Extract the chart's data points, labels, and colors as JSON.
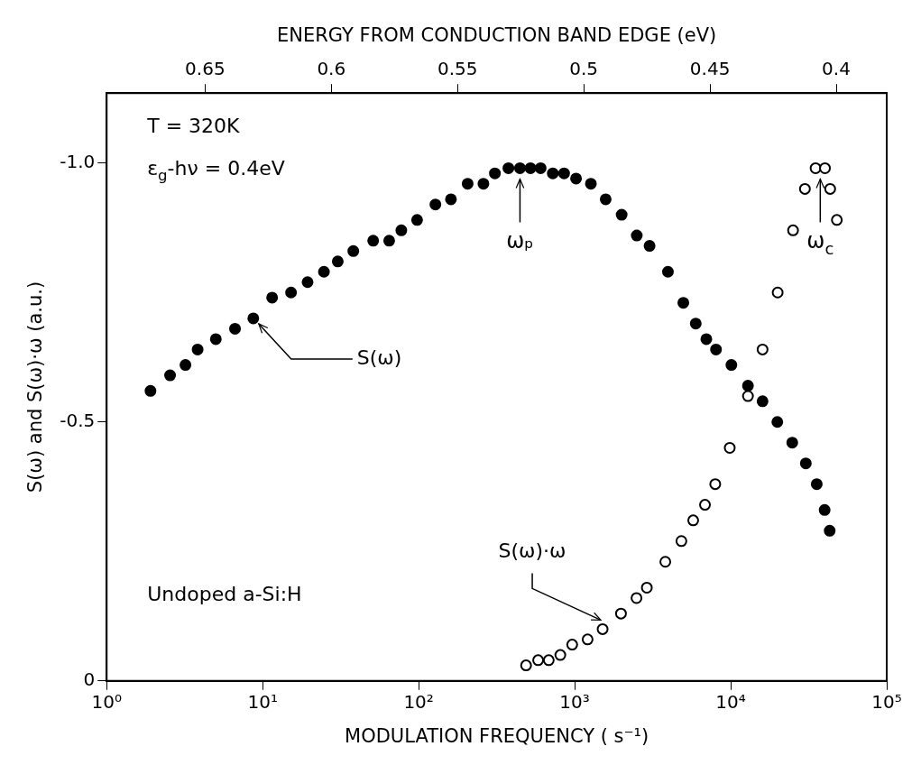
{
  "chart_data": {
    "type": "scatter",
    "xlabel": "MODULATION FREQUENCY ( s⁻¹)",
    "x2label": "ENERGY FROM CONDUCTION BAND EDGE (eV)",
    "ylabel": "S(ω) and S(ω)·ω (a.u.)",
    "log": "x",
    "grid": false,
    "legend": false,
    "marker": "circle",
    "xlim": [
      1,
      100000
    ],
    "xticks": [
      {
        "value": 1,
        "label": "10⁰"
      },
      {
        "value": 10,
        "label": "10¹"
      },
      {
        "value": 100,
        "label": "10²"
      },
      {
        "value": 1000,
        "label": "10³"
      },
      {
        "value": 10000,
        "label": "10⁴"
      },
      {
        "value": 100000,
        "label": "10⁵"
      }
    ],
    "x2lim": [
      0.689,
      0.38
    ],
    "x2ticks": [
      0.65,
      0.6,
      0.55,
      0.5,
      0.45,
      0.4
    ],
    "ylim": [
      0,
      -1.135
    ],
    "yticks": [
      0,
      {
        "value": -0.5,
        "label": "-0.5"
      },
      {
        "value": -1,
        "label": "-1.0"
      }
    ],
    "series": [
      {
        "name": "S(ω)",
        "color": "#000000",
        "x": [
          1.91,
          2.55,
          3.2,
          3.83,
          5.01,
          6.65,
          8.71,
          11.5,
          15.2,
          19.4,
          24.7,
          30.3,
          38.1,
          51.1,
          64.7,
          77.4,
          97.7,
          128,
          161,
          206,
          260,
          308,
          376,
          446,
          521,
          605,
          724,
          855,
          1020,
          1270,
          1580,
          2000,
          2500,
          3020,
          3960,
          4970,
          5970,
          6980,
          8050,
          10100,
          12900,
          16000,
          19900,
          24800,
          30300,
          35600,
          40000,
          43100
        ],
        "values": [
          -0.56,
          -0.59,
          -0.61,
          -0.64,
          -0.66,
          -0.68,
          -0.7,
          -0.74,
          -0.75,
          -0.77,
          -0.79,
          -0.81,
          -0.83,
          -0.85,
          -0.85,
          -0.87,
          -0.89,
          -0.92,
          -0.93,
          -0.96,
          -0.96,
          -0.98,
          -0.99,
          -0.99,
          -0.99,
          -0.99,
          -0.98,
          -0.98,
          -0.97,
          -0.96,
          -0.93,
          -0.9,
          -0.86,
          -0.84,
          -0.79,
          -0.73,
          -0.69,
          -0.66,
          -0.64,
          -0.61,
          -0.57,
          -0.54,
          -0.5,
          -0.46,
          -0.42,
          -0.38,
          -0.33,
          -0.29
        ]
      },
      {
        "name": "S(ω)·ω",
        "color": "#000000",
        "x": [
          488,
          583,
          682,
          809,
          964,
          1210,
          1510,
          1980,
          2490,
          2900,
          3810,
          4830,
          5750,
          6840,
          7960,
          9860,
          12900,
          16000,
          20000,
          25100,
          29900,
          35000,
          40200,
          43400,
          47900
        ],
        "values": [
          -0.03,
          -0.04,
          -0.04,
          -0.05,
          -0.07,
          -0.08,
          -0.1,
          -0.13,
          -0.16,
          -0.18,
          -0.23,
          -0.27,
          -0.31,
          -0.34,
          -0.38,
          -0.45,
          -0.55,
          -0.64,
          -0.75,
          -0.87,
          -0.95,
          -0.99,
          -0.99,
          -0.95,
          -0.89
        ]
      }
    ],
    "annotations": [
      "T = 320K",
      "ε$_{g}$-hν = 0.4eV",
      "Undoped a-Si:H",
      {
        "text": "ωₚ",
        "x": 446,
        "y": -0.99
      },
      {
        "text": "ω$_{c}$",
        "x": 37500,
        "y": -0.99
      }
    ]
  }
}
